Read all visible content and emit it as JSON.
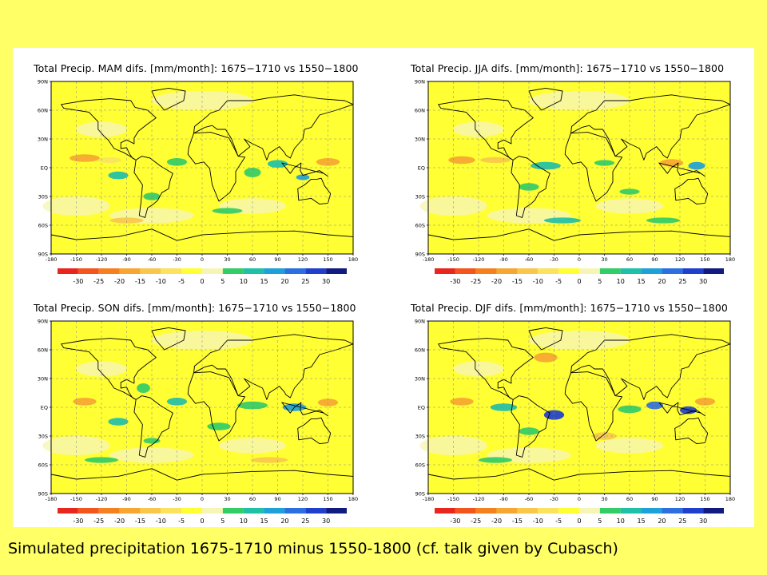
{
  "caption": "Simulated precipitation 1675-1710 minus 1550-1800 (cf. talk given by Cubasch)",
  "panels": [
    {
      "title": "Total Precip. MAM difs. [mm/month]: 1675−1710 vs 1550−1800",
      "season": "MAM"
    },
    {
      "title": "Total Precip. JJA difs. [mm/month]: 1675−1710 vs 1550−1800",
      "season": "JJA"
    },
    {
      "title": "Total Precip. SON difs. [mm/month]: 1675−1710 vs 1550−1800",
      "season": "SON"
    },
    {
      "title": "Total Precip. DJF difs. [mm/month]: 1675−1710 vs 1550−1800",
      "season": "DJF"
    }
  ],
  "map_axes": {
    "lat_labels": [
      "90N",
      "60N",
      "30N",
      "EQ",
      "30S",
      "60S",
      "90S"
    ],
    "lon_labels": [
      "-180",
      "-150",
      "-120",
      "-90",
      "-60",
      "-30",
      "0",
      "30",
      "60",
      "90",
      "120",
      "150",
      "180"
    ],
    "lat_range": [
      -90,
      90
    ],
    "lon_range": [
      -180,
      180
    ]
  },
  "colorbar": {
    "tick_labels": [
      "-30",
      "-25",
      "-20",
      "-15",
      "-10",
      "-5",
      "0",
      "5",
      "10",
      "15",
      "20",
      "25",
      "30"
    ],
    "colors": [
      "#e8261e",
      "#f2561c",
      "#f4801e",
      "#f6a631",
      "#f9c84b",
      "#fbe35e",
      "#ffff33",
      "#f7f5b5",
      "#33cc66",
      "#1fbfa8",
      "#1ea0d8",
      "#2b6fe0",
      "#1f3fcc",
      "#101a80"
    ]
  },
  "colors": {
    "background": "#ffff66",
    "map_fill": "#ffff33",
    "coastline": "#000000"
  }
}
